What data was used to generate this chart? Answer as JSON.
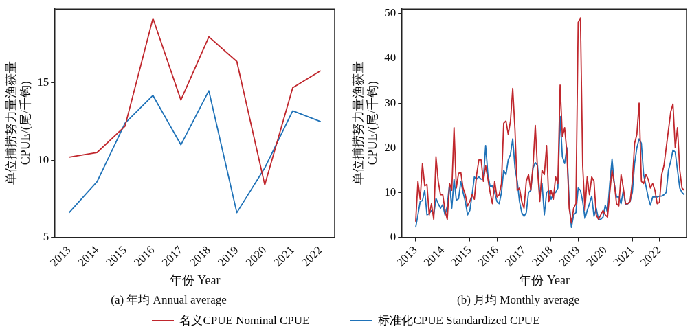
{
  "chart_data": [
    {
      "type": "line",
      "title": "(a) 年均 Annual average",
      "xlabel": "年份 Year",
      "ylabel": "单位捕捞努力量渔获量\nCPUE/(尾/千钩)",
      "categories": [
        "2013",
        "2014",
        "2015",
        "2016",
        "2017",
        "2018",
        "2019",
        "2020",
        "2021",
        "2022"
      ],
      "series": [
        {
          "name": "名义CPUE Nominal CPUE",
          "color": "#c0272d",
          "values": [
            10.2,
            10.5,
            12.2,
            19.2,
            13.9,
            18.0,
            16.4,
            8.4,
            14.7,
            15.8
          ]
        },
        {
          "name": "标准化CPUE Standardized CPUE",
          "color": "#1f72b8",
          "values": [
            6.6,
            8.6,
            12.4,
            14.2,
            11.0,
            14.5,
            6.6,
            9.5,
            13.2,
            12.5
          ]
        }
      ],
      "ylim": [
        5,
        19.8
      ],
      "yticks": [
        5,
        10,
        15
      ],
      "grid": false,
      "legend": "bottom"
    },
    {
      "type": "line",
      "title": "(b) 月均 Monthly average",
      "xlabel": "年份 Year",
      "ylabel": "单位捕捞努力量渔获量\nCPUE/(尾/千钩)",
      "x": [
        "2013-01",
        "2013-02",
        "2013-03",
        "2013-04",
        "2013-05",
        "2013-06",
        "2013-07",
        "2013-08",
        "2013-09",
        "2013-10",
        "2013-11",
        "2013-12",
        "2014-01",
        "2014-02",
        "2014-03",
        "2014-04",
        "2014-05",
        "2014-06",
        "2014-07",
        "2014-08",
        "2014-09",
        "2014-10",
        "2014-11",
        "2014-12",
        "2015-01",
        "2015-02",
        "2015-03",
        "2015-04",
        "2015-05",
        "2015-06",
        "2015-07",
        "2015-08",
        "2015-09",
        "2015-10",
        "2015-11",
        "2015-12",
        "2016-01",
        "2016-02",
        "2016-03",
        "2016-04",
        "2016-05",
        "2016-06",
        "2016-07",
        "2016-08",
        "2016-09",
        "2016-10",
        "2016-11",
        "2016-12",
        "2017-01",
        "2017-02",
        "2017-03",
        "2017-04",
        "2017-05",
        "2017-06",
        "2017-07",
        "2017-08",
        "2017-09",
        "2017-10",
        "2017-11",
        "2017-12",
        "2018-01",
        "2018-02",
        "2018-03",
        "2018-04",
        "2018-05",
        "2018-06",
        "2018-07",
        "2018-08",
        "2018-09",
        "2018-10",
        "2018-11",
        "2018-12",
        "2019-01",
        "2019-02",
        "2019-03",
        "2019-04",
        "2019-05",
        "2019-06",
        "2019-07",
        "2019-08",
        "2019-09",
        "2019-10",
        "2019-11",
        "2019-12",
        "2020-01",
        "2020-02",
        "2020-03",
        "2020-04",
        "2020-05",
        "2020-06",
        "2020-07",
        "2020-08",
        "2020-09",
        "2020-10",
        "2020-11",
        "2020-12",
        "2021-01",
        "2021-02",
        "2021-03",
        "2021-04",
        "2021-05",
        "2021-06",
        "2021-07",
        "2021-08",
        "2021-09",
        "2021-10",
        "2021-11",
        "2021-12",
        "2022-01",
        "2022-02",
        "2022-03",
        "2022-04",
        "2022-05",
        "2022-06",
        "2022-07",
        "2022-08",
        "2022-09",
        "2022-10",
        "2022-11",
        "2022-12"
      ],
      "series": [
        {
          "color": "#c0272d",
          "values": [
            3.5,
            12.5,
            8.5,
            16.5,
            11.5,
            11.8,
            5,
            7.5,
            4,
            18,
            12.5,
            9.5,
            9.5,
            6,
            4,
            12,
            10.5,
            24.5,
            11,
            14.3,
            14.5,
            11,
            9.5,
            7,
            8,
            9.5,
            8.5,
            14,
            17.3,
            17.3,
            12.5,
            16,
            13,
            10,
            7.5,
            12.5,
            9,
            9.5,
            12,
            25.5,
            26,
            23,
            26,
            33.3,
            24,
            10.5,
            11,
            8,
            6.5,
            12.5,
            14,
            10.5,
            16,
            25,
            15,
            8,
            15,
            14,
            20.5,
            8,
            10.5,
            8.5,
            13.5,
            12,
            34,
            22.5,
            24.5,
            19,
            6.5,
            3.2,
            6.5,
            7.5,
            48,
            49,
            16,
            6,
            13.5,
            9.5,
            13.5,
            12.5,
            5,
            4,
            5,
            6,
            5,
            4.5,
            10,
            15,
            12,
            7.5,
            7,
            14,
            11,
            7.5,
            7.5,
            8,
            12.5,
            21,
            23,
            30,
            12.5,
            12,
            14,
            13,
            11,
            12,
            10.5,
            7.5,
            7.8,
            14,
            16,
            20,
            24,
            28,
            29.8,
            20,
            24.5,
            15,
            11,
            10.5
          ]
        },
        {
          "color": "#1f72b8",
          "values": [
            2.2,
            5,
            8,
            8.2,
            10.5,
            5,
            5.3,
            6,
            5,
            8.7,
            7.5,
            6.5,
            7.3,
            5,
            7,
            12,
            6.5,
            13,
            8.3,
            8.6,
            12.5,
            10,
            8,
            5,
            6,
            9.5,
            13.5,
            13,
            13.5,
            13,
            13,
            20.5,
            14,
            11.3,
            11.5,
            10,
            8,
            7.5,
            10,
            15,
            14,
            17.3,
            18.5,
            22,
            15.5,
            12.5,
            8,
            5.5,
            4.7,
            5.5,
            10,
            10.5,
            15.5,
            16.7,
            16,
            9.5,
            12,
            5,
            10,
            10.5,
            8.5,
            9.8,
            10,
            11,
            27,
            18,
            16.5,
            20,
            8,
            2.2,
            5,
            5.5,
            11,
            10.5,
            8,
            4.2,
            6,
            7.5,
            9.2,
            4.7,
            6.5,
            4,
            4,
            4.5,
            7.2,
            5.5,
            12,
            17.5,
            12,
            9,
            9,
            7.5,
            10.5,
            7.3,
            7.5,
            8,
            10,
            16.5,
            20,
            22,
            21,
            14,
            11.5,
            9,
            7.2,
            9,
            9,
            9,
            9.2,
            9.2,
            9.5,
            10,
            15,
            17,
            19.5,
            19,
            15,
            11,
            10,
            9.5
          ]
        }
      ],
      "xlim": [
        "2012-07",
        "2023-01"
      ],
      "xticks": [
        "2013",
        "2014",
        "2015",
        "2016",
        "2017",
        "2018",
        "2019",
        "2020",
        "2021",
        "2022"
      ],
      "ylim": [
        0,
        51
      ],
      "yticks": [
        0,
        10,
        20,
        30,
        40,
        50
      ],
      "grid": false
    }
  ]
}
